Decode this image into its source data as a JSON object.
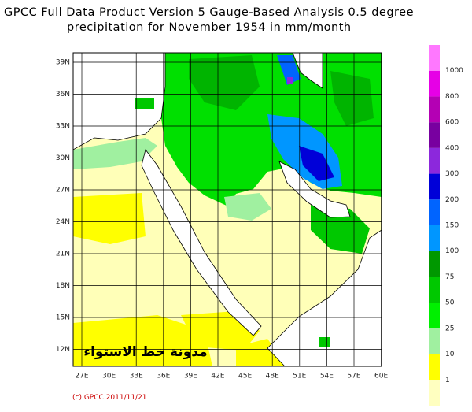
{
  "title": [
    "GPCC Full Data Product Version 5 Gauge-Based Analysis 0.5 degree",
    "precipitation for November  1954 in mm/month"
  ],
  "map": {
    "lat_labels": [
      "39N",
      "36N",
      "33N",
      "30N",
      "27N",
      "24N",
      "21N",
      "18N",
      "15N",
      "12N"
    ],
    "lon_labels": [
      "27E",
      "30E",
      "33E",
      "36E",
      "39E",
      "42E",
      "45E",
      "48E",
      "51E",
      "54E",
      "57E",
      "60E"
    ]
  },
  "legend": {
    "labels": [
      "1",
      "10",
      "25",
      "50",
      "75",
      "100",
      "150",
      "200",
      "300",
      "400",
      "600",
      "800",
      "1000"
    ],
    "colors": [
      "#ffffc0",
      "#ffff00",
      "#a0f0a0",
      "#00f000",
      "#00c800",
      "#009800",
      "#0096ff",
      "#0064ff",
      "#0000d8",
      "#8c28dc",
      "#7800a0",
      "#b400b4",
      "#e600e6",
      "#ff78ff"
    ]
  },
  "watermark": "مدونة خط الاستواء",
  "credit": "(c) GPCC 2011/11/21"
}
